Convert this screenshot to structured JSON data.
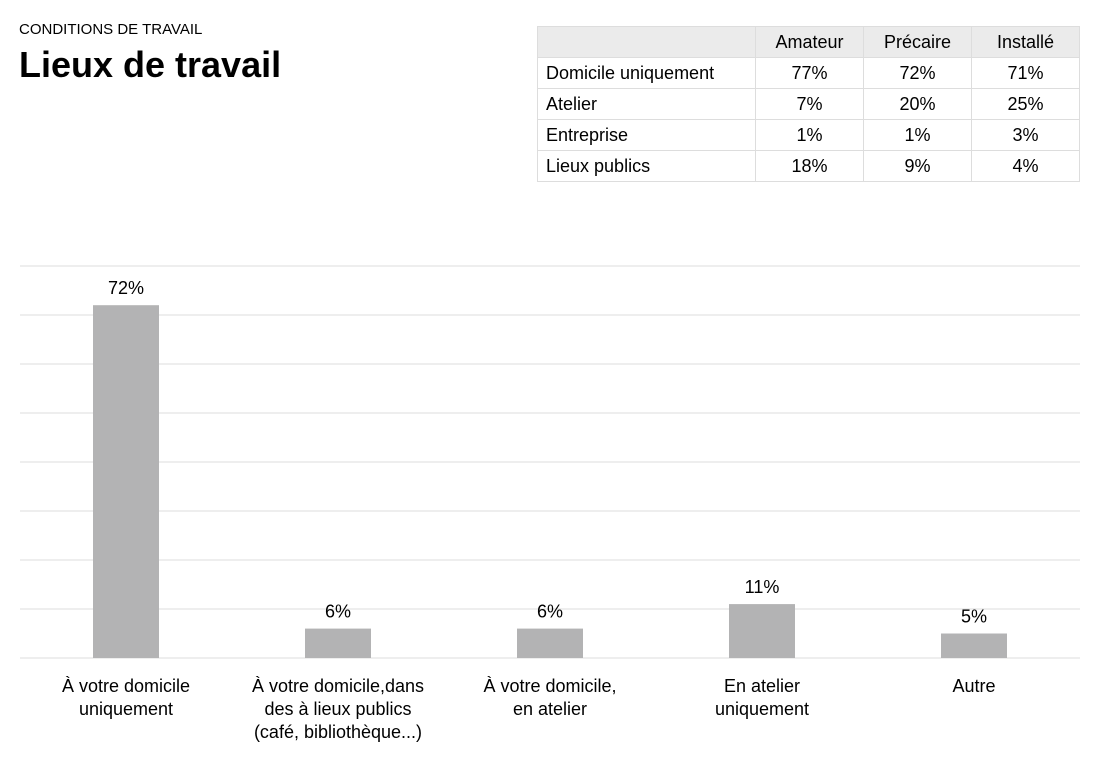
{
  "header": {
    "kicker": "CONDITIONS DE TRAVAIL",
    "title": "Lieux de travail"
  },
  "table": {
    "columns": [
      "Amateur",
      "Précaire",
      "Installé"
    ],
    "rows": [
      {
        "label": "Domicile uniquement",
        "values": [
          "77%",
          "72%",
          "71%"
        ]
      },
      {
        "label": "Atelier",
        "values": [
          "7%",
          "20%",
          "25%"
        ]
      },
      {
        "label": "Entreprise",
        "values": [
          "1%",
          "1%",
          "3%"
        ]
      },
      {
        "label": "Lieux publics",
        "values": [
          "18%",
          "9%",
          "4%"
        ]
      }
    ]
  },
  "chart_data": {
    "type": "bar",
    "categories": [
      "À votre domicile\nuniquement",
      "À votre domicile,dans\ndes à lieux publics\n(café, bibliothèque...)",
      "À votre domicile,\nen atelier",
      "En atelier\nuniquement",
      "Autre"
    ],
    "values": [
      72,
      6,
      6,
      11,
      5
    ],
    "value_labels": [
      "72%",
      "6%",
      "6%",
      "11%",
      "5%"
    ],
    "color": "#b3b3b4",
    "ylim": [
      0,
      80
    ],
    "yticks": [
      0,
      10,
      20,
      30,
      40,
      50,
      60,
      70,
      80
    ],
    "grid": true
  }
}
